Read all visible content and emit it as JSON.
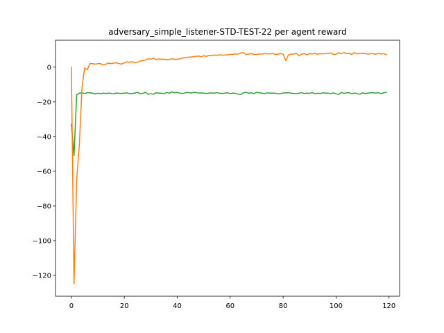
{
  "chart_data": {
    "type": "line",
    "title": "adversary_simple_listener-STD-TEST-22 per agent reward",
    "xlabel": "",
    "ylabel": "",
    "xlim": [
      -6,
      124
    ],
    "ylim": [
      -132,
      15.5
    ],
    "x_ticks": [
      0,
      20,
      40,
      60,
      80,
      100,
      120
    ],
    "y_ticks": [
      0,
      -20,
      -40,
      -60,
      -80,
      -100,
      -120
    ],
    "grid": false,
    "legend": "none",
    "series": [
      {
        "color": "#ff7f0e",
        "x": [
          0,
          1,
          2,
          3,
          4,
          5,
          6,
          7,
          8,
          9,
          10,
          11,
          12,
          13,
          14,
          15,
          16,
          17,
          18,
          19,
          20,
          21,
          22,
          23,
          24,
          25,
          26,
          27,
          28,
          29,
          30,
          31,
          32,
          33,
          34,
          35,
          36,
          37,
          38,
          39,
          40,
          41,
          42,
          43,
          44,
          45,
          46,
          47,
          48,
          49,
          50,
          51,
          52,
          53,
          54,
          55,
          56,
          57,
          58,
          59,
          60,
          61,
          62,
          63,
          64,
          65,
          66,
          67,
          68,
          69,
          70,
          71,
          72,
          73,
          74,
          75,
          76,
          77,
          78,
          79,
          80,
          81,
          82,
          83,
          84,
          85,
          86,
          87,
          88,
          89,
          90,
          91,
          92,
          93,
          94,
          95,
          96,
          97,
          98,
          99,
          100,
          101,
          102,
          103,
          104,
          105,
          106,
          107,
          108,
          109,
          110,
          111,
          112,
          113,
          114,
          115,
          116,
          117,
          118,
          119
        ],
        "y": [
          0,
          -125,
          -65,
          -45,
          -12,
          -0.5,
          -1.5,
          2,
          2,
          1.7,
          2,
          2,
          1.3,
          1.7,
          2.3,
          2,
          2.3,
          2.5,
          2,
          1.8,
          2.5,
          3,
          2.8,
          3.1,
          2.5,
          2.8,
          3.5,
          3.8,
          4,
          4.8,
          4.6,
          5.2,
          4.3,
          4.7,
          4.5,
          4.6,
          4.3,
          4.4,
          4.8,
          4.5,
          4.5,
          4.8,
          5.2,
          5.5,
          5.7,
          5.8,
          6,
          6.2,
          6.4,
          6,
          6.6,
          6.2,
          6.8,
          6.6,
          7,
          6.8,
          7.1,
          6.9,
          7,
          7.1,
          7.3,
          7.4,
          7.6,
          7.5,
          8.2,
          8.3,
          7.2,
          7.5,
          7.8,
          7.4,
          7.3,
          7.6,
          7.5,
          7.8,
          7.7,
          7.6,
          7.8,
          7.4,
          7.4,
          7.8,
          7.5,
          3.8,
          7,
          7.5,
          7.5,
          8,
          6.5,
          7.5,
          7.8,
          7.2,
          7.7,
          7.6,
          7.9,
          7.4,
          7.8,
          7.6,
          7.8,
          7.9,
          8.2,
          7.3,
          7.4,
          8.3,
          7.7,
          8.5,
          7.8,
          7.9,
          7.3,
          8.4,
          7.6,
          8,
          7.8,
          7.9,
          7.5,
          7.7,
          7.8,
          7.4,
          8,
          7.6,
          7.8,
          7.2
        ]
      },
      {
        "color": "#2ca02c",
        "x": [
          0,
          1,
          2,
          3,
          4,
          5,
          6,
          7,
          8,
          9,
          10,
          11,
          12,
          13,
          14,
          15,
          16,
          17,
          18,
          19,
          20,
          21,
          22,
          23,
          24,
          25,
          26,
          27,
          28,
          29,
          30,
          31,
          32,
          33,
          34,
          35,
          36,
          37,
          38,
          39,
          40,
          41,
          42,
          43,
          44,
          45,
          46,
          47,
          48,
          49,
          50,
          51,
          52,
          53,
          54,
          55,
          56,
          57,
          58,
          59,
          60,
          61,
          62,
          63,
          64,
          65,
          66,
          67,
          68,
          69,
          70,
          71,
          72,
          73,
          74,
          75,
          76,
          77,
          78,
          79,
          80,
          81,
          82,
          83,
          84,
          85,
          86,
          87,
          88,
          89,
          90,
          91,
          92,
          93,
          94,
          95,
          96,
          97,
          98,
          99,
          100,
          101,
          102,
          103,
          104,
          105,
          106,
          107,
          108,
          109,
          110,
          111,
          112,
          113,
          114,
          115,
          116,
          117,
          118,
          119
        ],
        "y": [
          -33,
          -51,
          -16,
          -15,
          -14.8,
          -15.2,
          -14.7,
          -14.8,
          -15,
          -15.5,
          -15,
          -15.3,
          -14.9,
          -15.2,
          -15,
          -15.1,
          -15.4,
          -14.9,
          -15.1,
          -15.2,
          -15,
          -14.8,
          -15.3,
          -15.2,
          -15,
          -14.5,
          -15.4,
          -15.1,
          -14.5,
          -15.6,
          -15.3,
          -15.6,
          -14.8,
          -15,
          -15,
          -15.3,
          -14.6,
          -15,
          -14.2,
          -14.8,
          -14.5,
          -15,
          -15.2,
          -14.8,
          -14.6,
          -14.9,
          -14.7,
          -14.5,
          -15,
          -14.8,
          -15,
          -15.2,
          -15,
          -14.9,
          -15,
          -14.7,
          -15,
          -15.2,
          -15,
          -14.8,
          -15.2,
          -15,
          -15.1,
          -15.5,
          -15.8,
          -14.8,
          -14.5,
          -15,
          -14.8,
          -15.2,
          -14.5,
          -14.8,
          -15,
          -15.3,
          -14.8,
          -15,
          -15,
          -15,
          -15.4,
          -15.3,
          -14.9,
          -14.8,
          -14.8,
          -15,
          -15.2,
          -15.3,
          -15,
          -14.7,
          -15.2,
          -15,
          -15.1,
          -14.6,
          -15.4,
          -15,
          -15.2,
          -14.8,
          -15,
          -15,
          -15.3,
          -14.8,
          -15.4,
          -15.7,
          -14.6,
          -15.1,
          -14.8,
          -14.8,
          -15.3,
          -14.9,
          -15.3,
          -15.6,
          -14.8,
          -15.2,
          -15,
          -14.8,
          -14.8,
          -15,
          -14.7,
          -15.3,
          -14.8,
          -14.5
        ]
      }
    ]
  }
}
